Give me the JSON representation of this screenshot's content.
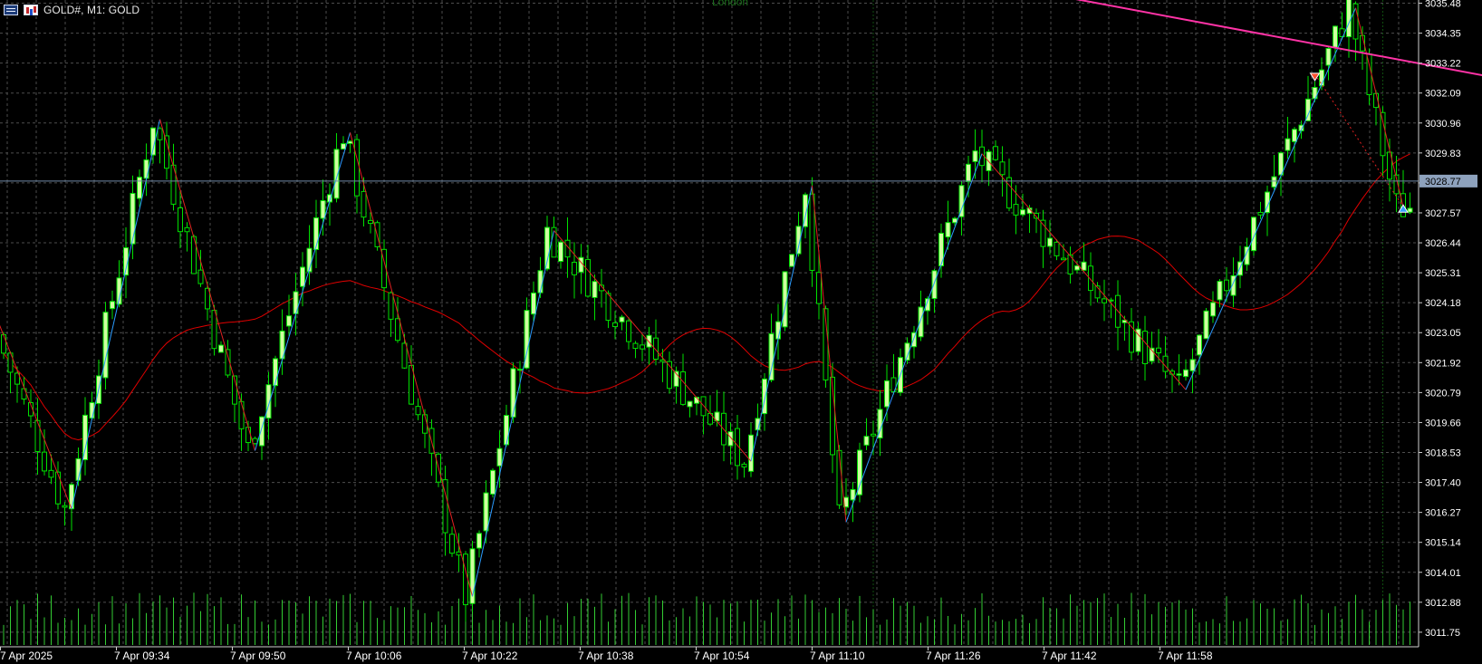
{
  "window": {
    "title": "GOLD#, M1:  GOLD",
    "icons": [
      "chart-window-icon",
      "one-click-trading-icon"
    ]
  },
  "session_label": "London",
  "colors": {
    "background": "#000000",
    "grid": "#4d4d4d",
    "axis_text": "#ffffff",
    "bull_candle": "#cfffa0",
    "bear_candle": "#000000",
    "candle_wick": "#00e000",
    "volume": "#33cc33",
    "moving_average": "#e00000",
    "zigzag_up": "#2b9cff",
    "zigzag_down": "#e02020",
    "trendline": "#ff33a6",
    "bid_line": "#6f8aa8",
    "price_tag_bg": "#8ea2bd",
    "session_line": "#0f4d0f",
    "sell_arrow": "#ff5030",
    "buy_arrow": "#35a0ff"
  },
  "chart_data": {
    "type": "candlestick",
    "symbol": "GOLD#",
    "timeframe": "M1",
    "y_range": [
      3011.2,
      3035.6
    ],
    "price_scale": [
      "3035.48",
      "3034.35",
      "3033.22",
      "3032.09",
      "3030.96",
      "3029.83",
      "3028.70",
      "3027.57",
      "3026.44",
      "3025.31",
      "3024.18",
      "3023.05",
      "3021.92",
      "3020.79",
      "3019.66",
      "3018.53",
      "3017.40",
      "3016.27",
      "3015.14",
      "3014.01",
      "3012.88",
      "3011.75"
    ],
    "current_price": "3028.77",
    "time_labels": [
      "7 Apr 2025",
      "7 Apr 09:34",
      "7 Apr 09:50",
      "7 Apr 10:06",
      "7 Apr 10:22",
      "7 Apr 10:38",
      "7 Apr 10:54",
      "7 Apr 11:10",
      "7 Apr 11:26",
      "7 Apr 11:42",
      "7 Apr 11:58"
    ],
    "zigzag": [
      {
        "bar": -1,
        "price": 3023.6
      },
      {
        "bar": 10,
        "price": 3016.4
      },
      {
        "bar": 23,
        "price": 3031.1
      },
      {
        "bar": 37,
        "price": 3018.6
      },
      {
        "bar": 51,
        "price": 3030.6
      },
      {
        "bar": 69,
        "price": 3013.1
      },
      {
        "bar": 81,
        "price": 3026.9
      },
      {
        "bar": 110,
        "price": 3018.2
      },
      {
        "bar": 119,
        "price": 3028.6
      },
      {
        "bar": 124,
        "price": 3015.9
      },
      {
        "bar": 144,
        "price": 3029.8
      },
      {
        "bar": 174,
        "price": 3020.9
      },
      {
        "bar": 199,
        "price": 3035.3
      },
      {
        "bar": 206,
        "price": 3027.8
      }
    ],
    "sell_signal": {
      "bar": 193,
      "price": 3032.8
    },
    "buy_signal": {
      "bar": 206,
      "price": 3027.8
    },
    "trendline": [
      {
        "bar": 146,
        "price": 3036.2
      },
      {
        "bar": 246,
        "price": 3031.4
      }
    ],
    "session_bar": 128,
    "total_bars": 208
  }
}
